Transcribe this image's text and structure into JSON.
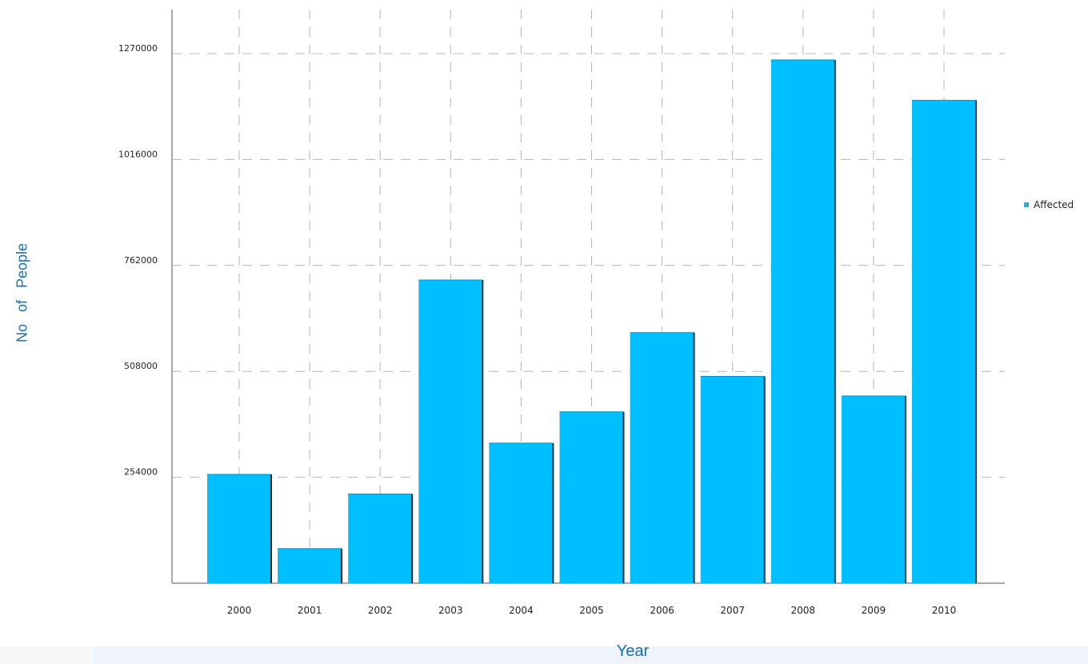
{
  "chart_data": {
    "type": "bar",
    "categories": [
      "2000",
      "2001",
      "2002",
      "2003",
      "2004",
      "2005",
      "2006",
      "2007",
      "2008",
      "2009",
      "2010"
    ],
    "series": [
      {
        "name": "Affected",
        "values": [
          261000,
          83000,
          214000,
          727000,
          336000,
          411000,
          601000,
          496000,
          1255000,
          449000,
          1158000
        ]
      }
    ],
    "xlabel": "Year",
    "ylabel": "No of People",
    "ylim": [
      0,
      1270000
    ],
    "yticks": [
      254000,
      508000,
      762000,
      1016000,
      1270000
    ],
    "ytick_labels": [
      "254000",
      "508000",
      "762000",
      "1016000",
      "1270000"
    ],
    "grid": true,
    "legend_position": "right",
    "colors": {
      "bar": "#00bfff",
      "legend": "#33a7d5",
      "axis_title": "#1b6fa8"
    }
  }
}
